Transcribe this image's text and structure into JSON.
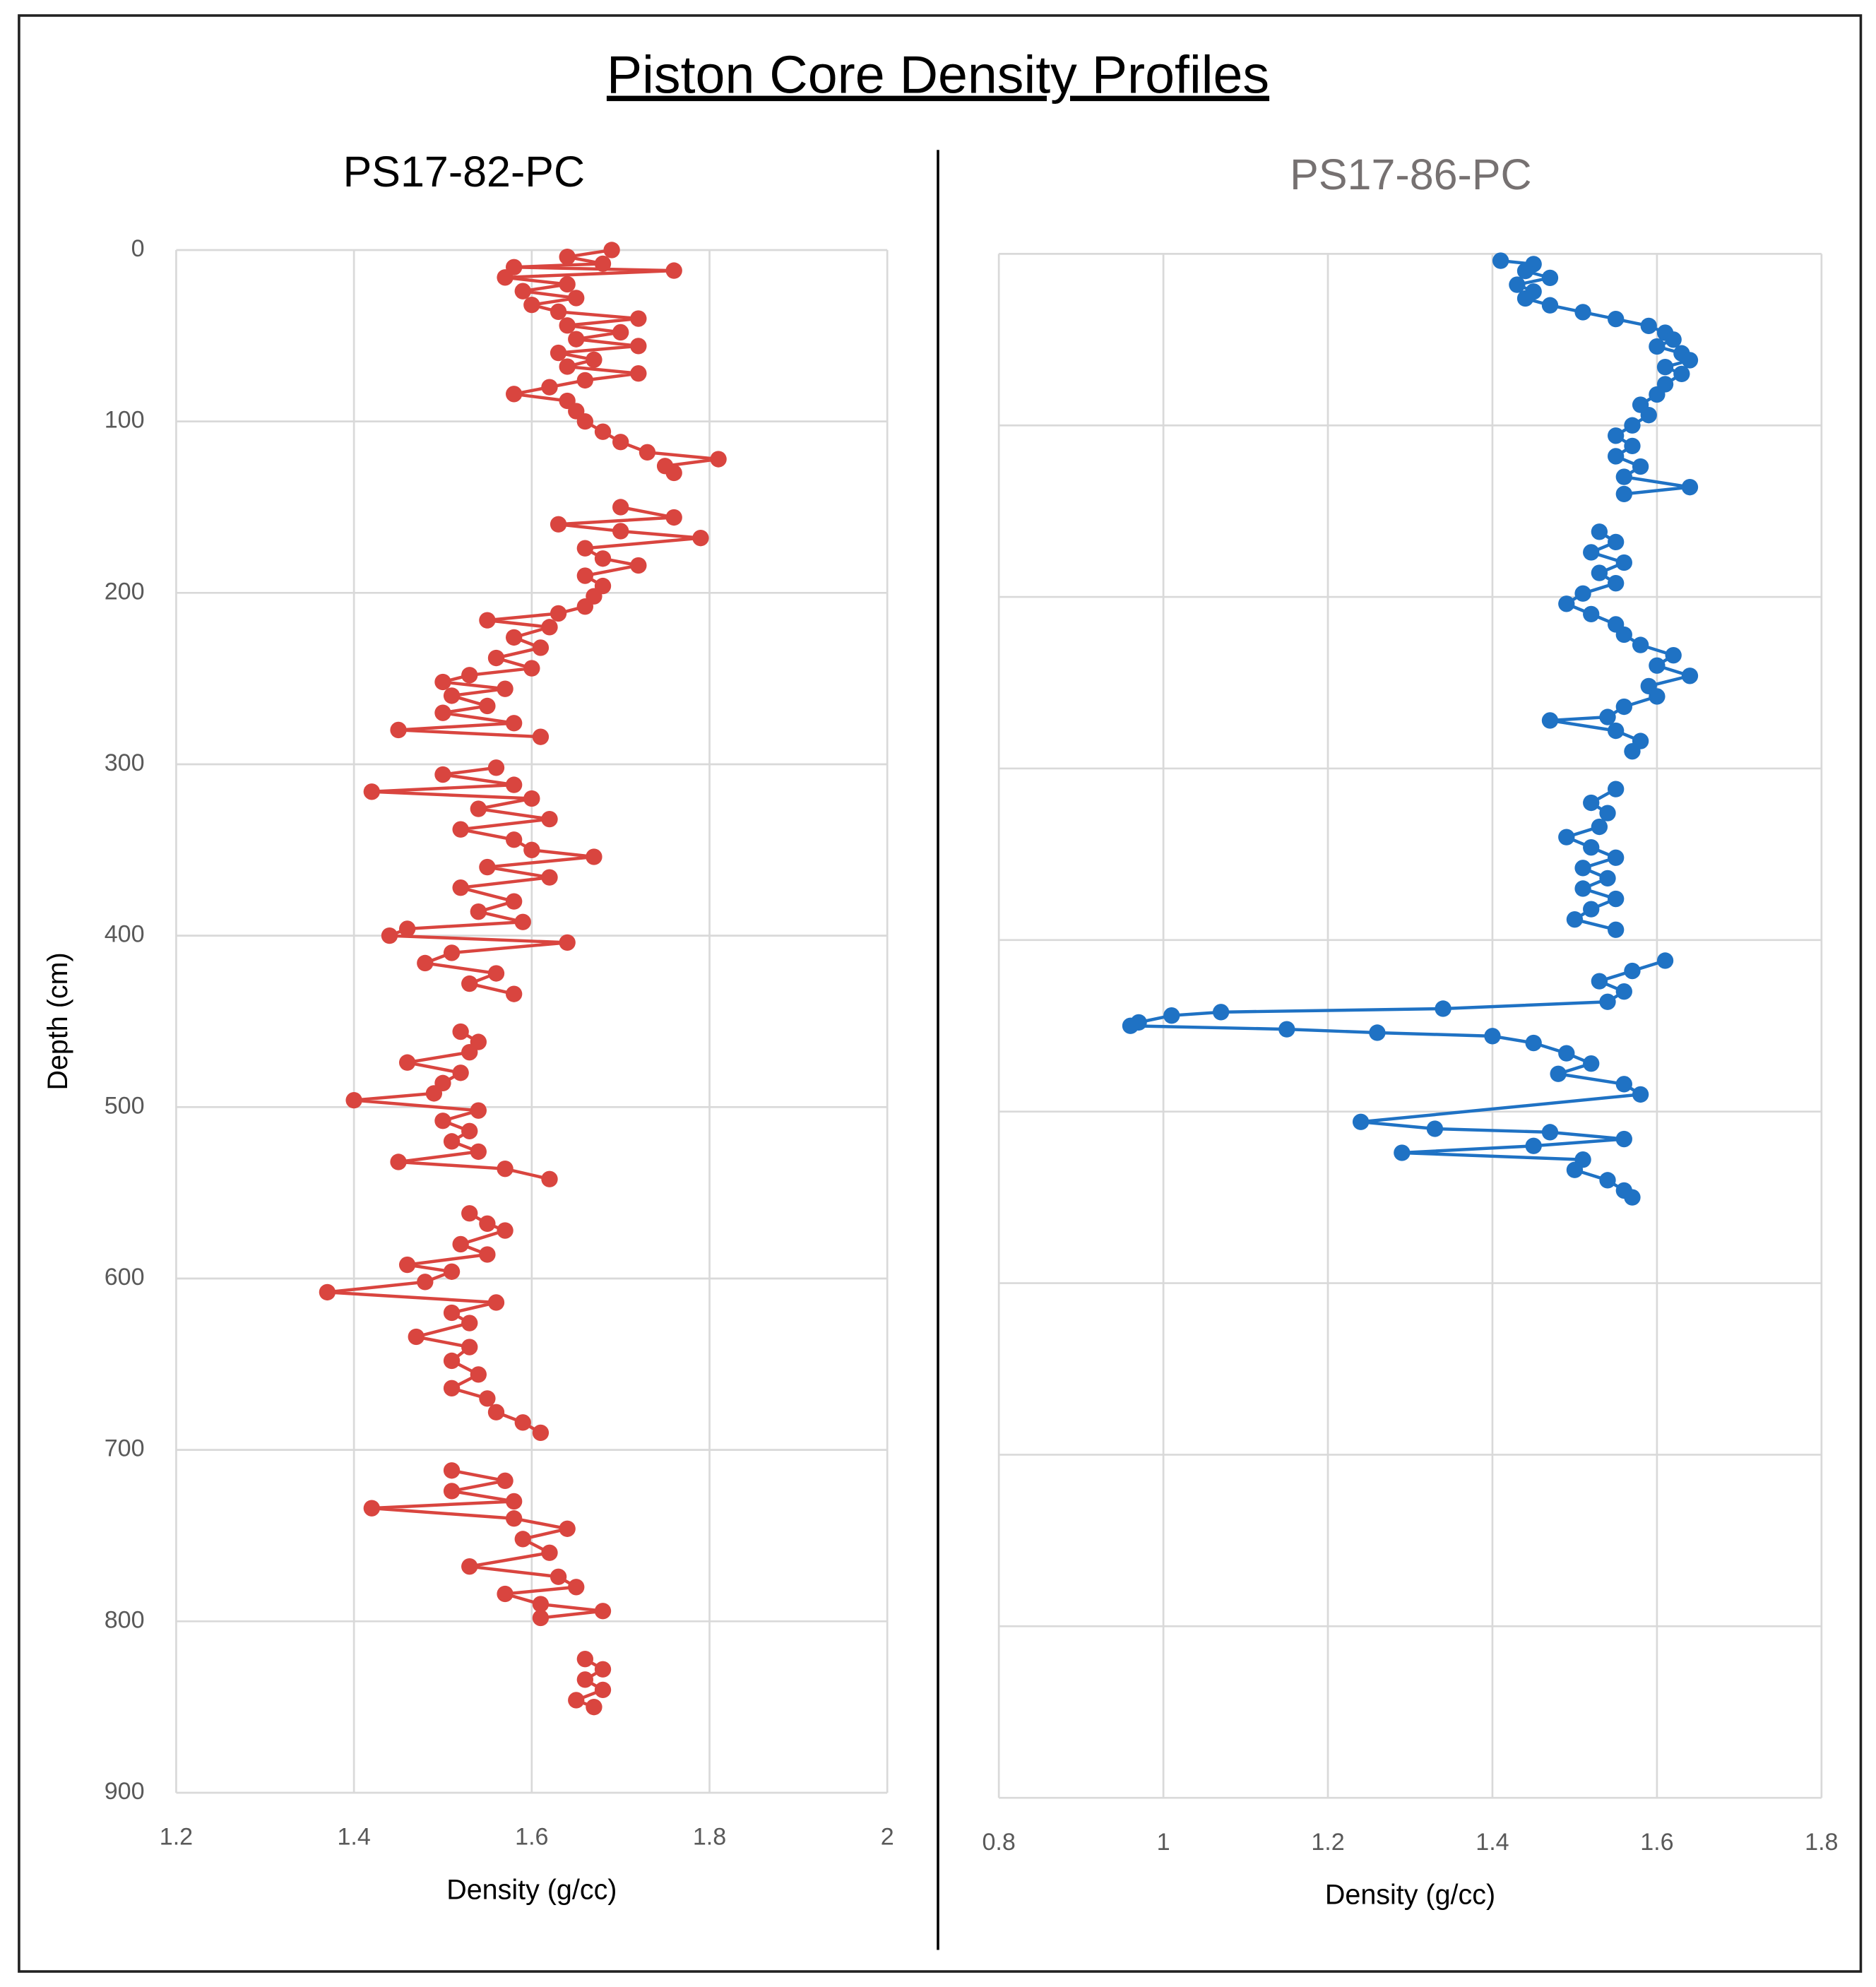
{
  "title": "Piston Core Density Profiles",
  "chart_data": [
    {
      "type": "line",
      "title": "PS17-82-PC",
      "title_color": "#000000",
      "x_label": "Density (g/cc)",
      "y_label": "Depth (cm)",
      "xlim": [
        1.2,
        2
      ],
      "xticks": [
        1.2,
        1.4,
        1.6,
        1.8,
        2
      ],
      "ylim": [
        0,
        900
      ],
      "yticks": [
        0,
        100,
        200,
        300,
        400,
        500,
        600,
        700,
        800,
        900
      ],
      "y_inverted": true,
      "show_ytick_labels": true,
      "grid": true,
      "series": [
        {
          "color": "#d9453f",
          "x": [
            1.69,
            1.64,
            1.68,
            1.58,
            1.76,
            1.57,
            1.64,
            1.59,
            1.65,
            1.6,
            1.63,
            1.72,
            1.64,
            1.7,
            1.65,
            1.72,
            1.63,
            1.67,
            1.64,
            1.72,
            1.66,
            1.62,
            1.58,
            1.64,
            1.65,
            1.66,
            1.68,
            1.7,
            1.73,
            1.81,
            1.75,
            1.76,
            null,
            1.7,
            1.76,
            1.63,
            1.7,
            1.79,
            1.66,
            1.68,
            1.72,
            1.66,
            1.68,
            1.67,
            1.66,
            1.63,
            1.55,
            1.62,
            1.58,
            1.61,
            1.56,
            1.6,
            1.53,
            1.5,
            1.57,
            1.51,
            1.55,
            1.5,
            1.58,
            1.45,
            1.61,
            null,
            1.56,
            1.5,
            1.58,
            1.42,
            1.6,
            1.54,
            1.62,
            1.52,
            1.58,
            1.6,
            1.67,
            1.55,
            1.62,
            1.52,
            1.58,
            1.54,
            1.59,
            1.46,
            1.44,
            1.64,
            1.51,
            1.48,
            1.56,
            1.53,
            1.58,
            null,
            1.52,
            1.54,
            1.53,
            1.46,
            1.52,
            1.5,
            1.49,
            1.4,
            1.54,
            1.5,
            1.53,
            1.51,
            1.54,
            1.45,
            1.57,
            1.62,
            null,
            1.53,
            1.55,
            1.57,
            1.52,
            1.55,
            1.46,
            1.51,
            1.48,
            1.37,
            1.56,
            1.51,
            1.53,
            1.47,
            1.53,
            1.51,
            1.54,
            1.51,
            1.55,
            1.56,
            1.59,
            1.61,
            null,
            1.51,
            1.57,
            1.51,
            1.58,
            1.42,
            1.58,
            1.64,
            1.59,
            1.62,
            1.53,
            1.63,
            1.65,
            1.57,
            1.61,
            1.68,
            1.61,
            null,
            1.66,
            1.68,
            1.66,
            1.68,
            1.65,
            1.67
          ],
          "values": [
            0,
            4,
            8,
            10,
            12,
            16,
            20,
            24,
            28,
            32,
            36,
            40,
            44,
            48,
            52,
            56,
            60,
            64,
            68,
            72,
            76,
            80,
            84,
            88,
            94,
            100,
            106,
            112,
            118,
            122,
            126,
            130,
            null,
            150,
            156,
            160,
            164,
            168,
            174,
            180,
            184,
            190,
            196,
            202,
            208,
            212,
            216,
            220,
            226,
            232,
            238,
            244,
            248,
            252,
            256,
            260,
            266,
            270,
            276,
            280,
            284,
            null,
            302,
            306,
            312,
            316,
            320,
            326,
            332,
            338,
            344,
            350,
            354,
            360,
            366,
            372,
            380,
            386,
            392,
            396,
            400,
            404,
            410,
            416,
            422,
            428,
            434,
            null,
            456,
            462,
            468,
            474,
            480,
            486,
            492,
            496,
            502,
            508,
            514,
            520,
            526,
            532,
            536,
            542,
            null,
            562,
            568,
            572,
            580,
            586,
            592,
            596,
            602,
            608,
            614,
            620,
            626,
            634,
            640,
            648,
            656,
            664,
            670,
            678,
            684,
            690,
            null,
            712,
            718,
            724,
            730,
            734,
            740,
            746,
            752,
            760,
            768,
            774,
            780,
            784,
            790,
            794,
            798,
            null,
            822,
            828,
            834,
            840,
            846,
            850
          ]
        }
      ]
    },
    {
      "type": "line",
      "title": "PS17-86-PC",
      "title_color": "#767171",
      "x_label": "Density (g/cc)",
      "xlim": [
        0.8,
        1.8
      ],
      "xticks": [
        0.8,
        1,
        1.2,
        1.4,
        1.6,
        1.8
      ],
      "ylim": [
        0,
        900
      ],
      "yticks": [
        0,
        100,
        200,
        300,
        400,
        500,
        600,
        700,
        800,
        900
      ],
      "y_inverted": true,
      "show_ytick_labels": false,
      "grid": true,
      "series": [
        {
          "color": "#1f72c4",
          "x": [
            1.41,
            1.45,
            1.44,
            1.47,
            1.43,
            1.45,
            1.44,
            1.47,
            1.51,
            1.55,
            1.59,
            1.61,
            1.62,
            1.6,
            1.63,
            1.64,
            1.61,
            1.63,
            1.61,
            1.6,
            1.58,
            1.59,
            1.57,
            1.55,
            1.57,
            1.55,
            1.58,
            1.56,
            1.64,
            1.56,
            null,
            1.53,
            1.55,
            1.52,
            1.56,
            1.53,
            1.55,
            1.51,
            1.49,
            1.52,
            1.55,
            1.56,
            1.58,
            1.62,
            1.6,
            1.64,
            1.59,
            1.6,
            1.56,
            1.54,
            1.47,
            1.55,
            1.58,
            1.57,
            null,
            1.55,
            1.52,
            1.54,
            1.53,
            1.49,
            1.52,
            1.55,
            1.51,
            1.54,
            1.51,
            1.55,
            1.52,
            1.5,
            1.55,
            null,
            1.61,
            1.57,
            1.53,
            1.56,
            1.54,
            1.34,
            1.07,
            1.01,
            0.97,
            0.96,
            1.15,
            1.26,
            1.4,
            1.45,
            1.49,
            1.52,
            1.48,
            1.56,
            1.58,
            1.24,
            1.33,
            1.47,
            1.56,
            1.45,
            1.29,
            1.51,
            1.5,
            1.54,
            1.56,
            1.57
          ],
          "values": [
            4,
            6,
            10,
            14,
            18,
            22,
            26,
            30,
            34,
            38,
            42,
            46,
            50,
            54,
            58,
            62,
            66,
            70,
            76,
            82,
            88,
            94,
            100,
            106,
            112,
            118,
            124,
            130,
            136,
            140,
            null,
            162,
            168,
            174,
            180,
            186,
            192,
            198,
            204,
            210,
            216,
            222,
            228,
            234,
            240,
            246,
            252,
            258,
            264,
            270,
            272,
            278,
            284,
            290,
            null,
            312,
            320,
            326,
            334,
            340,
            346,
            352,
            358,
            364,
            370,
            376,
            382,
            388,
            394,
            null,
            412,
            418,
            424,
            430,
            436,
            440,
            442,
            444,
            448,
            450,
            452,
            454,
            456,
            460,
            466,
            472,
            478,
            484,
            490,
            506,
            510,
            512,
            516,
            520,
            524,
            528,
            534,
            540,
            546,
            550
          ]
        }
      ]
    }
  ]
}
